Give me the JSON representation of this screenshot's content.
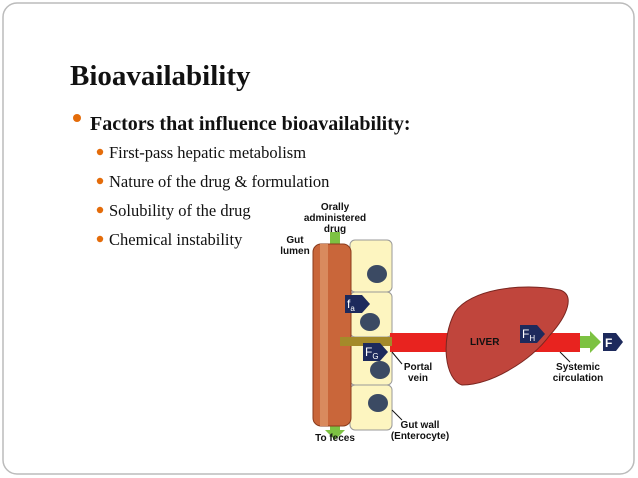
{
  "slide": {
    "title": "Bioavailability",
    "bullet": "Factors that influence bioavailability:",
    "sub_bullets": [
      "First-pass hepatic metabolism",
      "Nature of the drug & formulation",
      "Solubility of the drug",
      "Chemical instability"
    ],
    "diagram": {
      "drug": [
        "Orally",
        "administered",
        "drug"
      ],
      "gut_lumen": [
        "Gut",
        "lumen"
      ],
      "portal_vein": [
        "Portal",
        "vein"
      ],
      "liver": "LIVER",
      "systemic": [
        "Systemic",
        "circulation"
      ],
      "gut_wall": [
        "Gut wall",
        "(Enterocyte)"
      ],
      "feces": "To feces",
      "fa": {
        "main": "f",
        "sub": "a"
      },
      "fg": {
        "main": "F",
        "sub": "G"
      },
      "fh": {
        "main": "F",
        "sub": "H"
      },
      "f": "F"
    }
  }
}
